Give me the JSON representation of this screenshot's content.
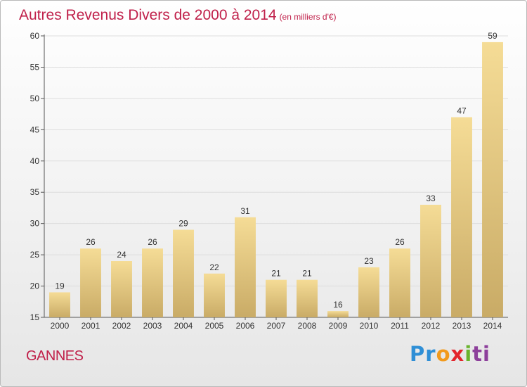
{
  "title": "Autres Revenus Divers de 2000 à 2014",
  "subtitle": "(en milliers d'€)",
  "location": "GANNES",
  "logo": {
    "letters": [
      "Pr",
      "o",
      "x",
      "i",
      "ti"
    ]
  },
  "colors": {
    "title": "#c0204a",
    "bar_top": "#f5dc96",
    "bar_bottom": "#c9ab66",
    "grid": "#dddddd"
  },
  "chart_data": {
    "type": "bar",
    "title": "Autres Revenus Divers de 2000 à 2014",
    "xlabel": "",
    "ylabel": "",
    "ylim": [
      15,
      60
    ],
    "yticks": [
      15,
      20,
      25,
      30,
      35,
      40,
      45,
      50,
      55,
      60
    ],
    "grid": true,
    "categories": [
      "2000",
      "2001",
      "2002",
      "2003",
      "2004",
      "2005",
      "2006",
      "2007",
      "2008",
      "2009",
      "2010",
      "2011",
      "2012",
      "2013",
      "2014"
    ],
    "values": [
      19,
      26,
      24,
      26,
      29,
      22,
      31,
      21,
      21,
      16,
      23,
      26,
      33,
      47,
      59
    ]
  }
}
